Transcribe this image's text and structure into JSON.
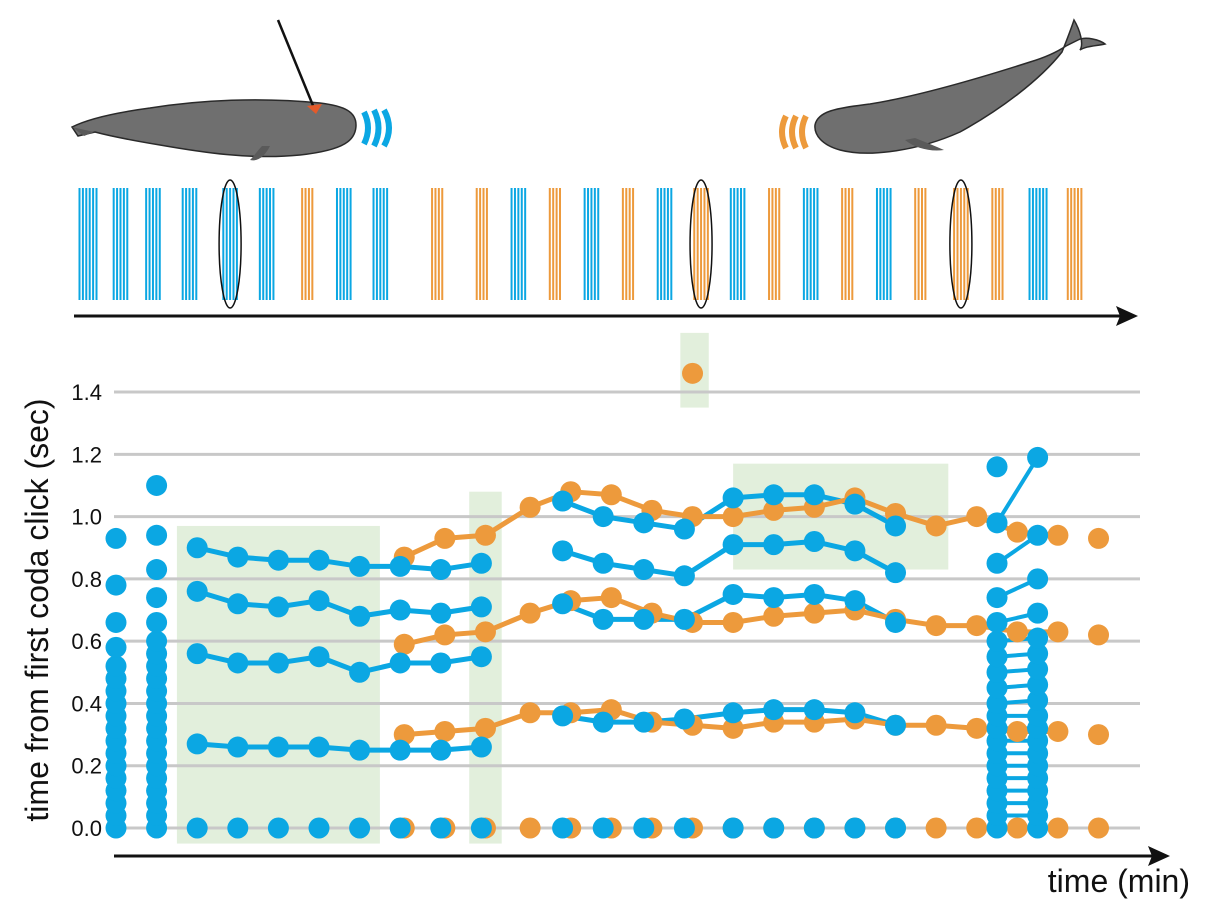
{
  "figure": {
    "ylabel": "time from first coda click (sec)",
    "xlabel": "time (min)"
  },
  "colors": {
    "blue": "#0BA7E3",
    "orange": "#ED9A3C",
    "highlight": "#E2EFDC",
    "gridline": "#C8C8C8",
    "axis": "#111111"
  },
  "icons": {
    "tagged_whale": "sperm-whale-with-tag-icon",
    "second_whale": "sperm-whale-icon",
    "blue_clicks": "sound-wave-blue-icon",
    "orange_clicks": "sound-wave-orange-icon"
  },
  "chart_data": {
    "type": "scatter",
    "ylim": [
      -0.05,
      1.55
    ],
    "yticks": [
      0.0,
      0.2,
      0.4,
      0.6,
      0.8,
      1.0,
      1.2,
      1.4
    ],
    "ytick_labels": [
      "0.0",
      "0.2",
      "0.4",
      "0.6",
      "0.8",
      "1.0",
      "1.2",
      "1.4"
    ],
    "grid": true,
    "series": [
      {
        "color": "blue",
        "codas": [
          {
            "x": 1,
            "clicks": [
              0.0,
              0.04,
              0.08,
              0.12,
              0.16,
              0.2,
              0.24,
              0.28,
              0.32,
              0.36,
              0.4,
              0.44,
              0.48,
              0.52,
              0.58,
              0.66,
              0.78,
              0.93
            ]
          },
          {
            "x": 2,
            "clicks": [
              0.0,
              0.04,
              0.08,
              0.12,
              0.16,
              0.2,
              0.24,
              0.28,
              0.32,
              0.36,
              0.4,
              0.44,
              0.48,
              0.52,
              0.56,
              0.6,
              0.66,
              0.74,
              0.83,
              0.94,
              1.1
            ]
          },
          {
            "x": 3,
            "clicks": [
              0.0,
              0.27,
              0.56,
              0.76,
              0.9
            ]
          },
          {
            "x": 4,
            "clicks": [
              0.0,
              0.26,
              0.53,
              0.72,
              0.87
            ]
          },
          {
            "x": 5,
            "clicks": [
              0.0,
              0.26,
              0.53,
              0.71,
              0.86
            ]
          },
          {
            "x": 6,
            "clicks": [
              0.0,
              0.26,
              0.55,
              0.73,
              0.86
            ]
          },
          {
            "x": 7,
            "clicks": [
              0.0,
              0.25,
              0.5,
              0.68,
              0.84
            ]
          },
          {
            "x": 8,
            "clicks": [
              0.0,
              0.25,
              0.53,
              0.7,
              0.84
            ]
          },
          {
            "x": 9,
            "clicks": [
              0.0,
              0.25,
              0.53,
              0.69,
              0.83
            ]
          },
          {
            "x": 10,
            "clicks": [
              0.0,
              0.26,
              0.55,
              0.71,
              0.85
            ]
          },
          {
            "x": 12,
            "clicks": [
              0.0,
              0.36,
              0.72,
              0.89,
              1.05
            ]
          },
          {
            "x": 13,
            "clicks": [
              0.0,
              0.34,
              0.67,
              0.85,
              1.0
            ]
          },
          {
            "x": 14,
            "clicks": [
              0.0,
              0.34,
              0.67,
              0.83,
              0.98
            ]
          },
          {
            "x": 15,
            "clicks": [
              0.0,
              0.35,
              0.67,
              0.81,
              0.96
            ]
          },
          {
            "x": 16.2,
            "clicks": [
              0.0,
              0.37,
              0.75,
              0.91,
              1.06
            ]
          },
          {
            "x": 17.2,
            "clicks": [
              0.0,
              0.38,
              0.74,
              0.91,
              1.07
            ]
          },
          {
            "x": 18.2,
            "clicks": [
              0.0,
              0.38,
              0.75,
              0.92,
              1.07
            ]
          },
          {
            "x": 19.2,
            "clicks": [
              0.0,
              0.37,
              0.73,
              0.89,
              1.04
            ]
          },
          {
            "x": 20.2,
            "clicks": [
              0.0,
              0.33,
              0.66,
              0.82,
              0.97
            ]
          },
          {
            "x": 22.7,
            "clicks": [
              0.0,
              0.04,
              0.08,
              0.12,
              0.16,
              0.2,
              0.24,
              0.28,
              0.32,
              0.36,
              0.4,
              0.45,
              0.5,
              0.55,
              0.6,
              0.66,
              0.74,
              0.85,
              0.98,
              1.16
            ]
          },
          {
            "x": 23.7,
            "clicks": [
              0.0,
              0.04,
              0.08,
              0.12,
              0.16,
              0.2,
              0.24,
              0.28,
              0.32,
              0.36,
              0.41,
              0.46,
              0.51,
              0.56,
              0.61,
              0.69,
              0.8,
              0.94,
              1.19
            ]
          }
        ],
        "connect": [
          [
            3,
            10
          ],
          [
            12,
            20.2
          ]
        ],
        "slanted": [
          [
            22.7,
            23.7
          ]
        ]
      },
      {
        "color": "orange",
        "codas": [
          {
            "x": 8.1,
            "clicks": [
              0.0,
              0.3,
              0.59,
              0.87
            ]
          },
          {
            "x": 9.1,
            "clicks": [
              0.0,
              0.31,
              0.62,
              0.93
            ]
          },
          {
            "x": 10.1,
            "clicks": [
              0.0,
              0.32,
              0.63,
              0.94
            ]
          },
          {
            "x": 11.2,
            "clicks": [
              0.0,
              0.37,
              0.69,
              1.03
            ]
          },
          {
            "x": 12.2,
            "clicks": [
              0.0,
              0.37,
              0.73,
              1.08
            ]
          },
          {
            "x": 13.2,
            "clicks": [
              0.0,
              0.38,
              0.74,
              1.07
            ]
          },
          {
            "x": 14.2,
            "clicks": [
              0.0,
              0.34,
              0.69,
              1.02
            ]
          },
          {
            "x": 15.2,
            "clicks": [
              0.0,
              0.33,
              0.66,
              1.0,
              1.46
            ]
          },
          {
            "x": 16.2,
            "clicks": [
              0.0,
              0.32,
              0.66,
              1.0
            ]
          },
          {
            "x": 17.2,
            "clicks": [
              0.0,
              0.34,
              0.68,
              1.02
            ]
          },
          {
            "x": 18.2,
            "clicks": [
              0.0,
              0.34,
              0.69,
              1.03
            ]
          },
          {
            "x": 19.2,
            "clicks": [
              0.0,
              0.35,
              0.7,
              1.06
            ]
          },
          {
            "x": 20.2,
            "clicks": [
              0.0,
              0.33,
              0.67,
              1.01
            ]
          },
          {
            "x": 21.2,
            "clicks": [
              0.0,
              0.33,
              0.65,
              0.97
            ]
          },
          {
            "x": 22.2,
            "clicks": [
              0.0,
              0.32,
              0.65,
              1.0
            ]
          },
          {
            "x": 23.2,
            "clicks": [
              0.0,
              0.31,
              0.63,
              0.95
            ]
          },
          {
            "x": 24.2,
            "clicks": [
              0.0,
              0.31,
              0.63,
              0.94
            ]
          },
          {
            "x": 25.2,
            "clicks": [
              0.0,
              0.3,
              0.62,
              0.93
            ]
          }
        ],
        "connect": [
          [
            8.1,
            24.2
          ]
        ]
      }
    ],
    "highlighted_regions": [
      {
        "x_range": [
          2.5,
          7.5
        ],
        "y_range": [
          -0.05,
          0.97
        ]
      },
      {
        "x_range": [
          9.7,
          10.5
        ],
        "y_range": [
          -0.05,
          1.08
        ]
      },
      {
        "x_range": [
          14.9,
          15.6
        ],
        "y_range": [
          1.35,
          1.59
        ]
      },
      {
        "x_range": [
          16.2,
          21.5
        ],
        "y_range": [
          0.83,
          1.17
        ]
      }
    ],
    "top_click_sequence": {
      "description_free": true,
      "codas": [
        {
          "x": 0.5,
          "color": "blue",
          "clicks": 6,
          "circled": false
        },
        {
          "x": 1.3,
          "color": "blue",
          "clicks": 5,
          "circled": false
        },
        {
          "x": 2.1,
          "color": "blue",
          "clicks": 5,
          "circled": false
        },
        {
          "x": 3.0,
          "color": "blue",
          "clicks": 5,
          "circled": false
        },
        {
          "x": 4.0,
          "color": "blue",
          "clicks": 5,
          "circled": true
        },
        {
          "x": 4.9,
          "color": "blue",
          "clicks": 5,
          "circled": false
        },
        {
          "x": 5.9,
          "color": "orange",
          "clicks": 4,
          "circled": false
        },
        {
          "x": 6.8,
          "color": "blue",
          "clicks": 5,
          "circled": false
        },
        {
          "x": 7.7,
          "color": "blue",
          "clicks": 5,
          "circled": false
        },
        {
          "x": 9.1,
          "color": "orange",
          "clicks": 4,
          "circled": false
        },
        {
          "x": 10.2,
          "color": "orange",
          "clicks": 4,
          "circled": false
        },
        {
          "x": 11.1,
          "color": "blue",
          "clicks": 5,
          "circled": false
        },
        {
          "x": 12.0,
          "color": "orange",
          "clicks": 4,
          "circled": false
        },
        {
          "x": 12.9,
          "color": "blue",
          "clicks": 5,
          "circled": false
        },
        {
          "x": 13.8,
          "color": "orange",
          "clicks": 4,
          "circled": false
        },
        {
          "x": 14.7,
          "color": "blue",
          "clicks": 5,
          "circled": false
        },
        {
          "x": 15.6,
          "color": "orange",
          "clicks": 5,
          "circled": true
        },
        {
          "x": 16.5,
          "color": "blue",
          "clicks": 5,
          "circled": false
        },
        {
          "x": 17.4,
          "color": "orange",
          "clicks": 4,
          "circled": false
        },
        {
          "x": 18.3,
          "color": "blue",
          "clicks": 5,
          "circled": false
        },
        {
          "x": 19.2,
          "color": "orange",
          "clicks": 4,
          "circled": false
        },
        {
          "x": 20.1,
          "color": "blue",
          "clicks": 5,
          "circled": false
        },
        {
          "x": 21.0,
          "color": "orange",
          "clicks": 4,
          "circled": false
        },
        {
          "x": 22.0,
          "color": "orange",
          "clicks": 5,
          "circled": true
        },
        {
          "x": 22.9,
          "color": "orange",
          "clicks": 4,
          "circled": false
        },
        {
          "x": 23.9,
          "color": "blue",
          "clicks": 6,
          "circled": false
        },
        {
          "x": 24.8,
          "color": "orange",
          "clicks": 5,
          "circled": false
        }
      ]
    }
  }
}
